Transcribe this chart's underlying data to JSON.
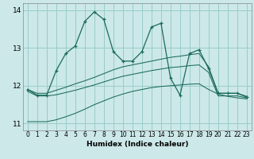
{
  "xlabel": "Humidex (Indice chaleur)",
  "bg_color": "#cce8e8",
  "grid_color": "#99cccc",
  "line_color": "#1a6b5a",
  "xlim": [
    -0.5,
    23.5
  ],
  "ylim": [
    10.82,
    14.18
  ],
  "yticks": [
    11,
    12,
    13,
    14
  ],
  "xticks": [
    0,
    1,
    2,
    3,
    4,
    5,
    6,
    7,
    8,
    9,
    10,
    11,
    12,
    13,
    14,
    15,
    16,
    17,
    18,
    19,
    20,
    21,
    22,
    23
  ],
  "main_y": [
    11.9,
    11.75,
    11.75,
    12.4,
    12.85,
    13.05,
    13.7,
    13.95,
    13.75,
    12.9,
    12.65,
    12.65,
    12.9,
    13.55,
    13.65,
    12.2,
    11.75,
    12.85,
    12.95,
    12.45,
    11.8,
    11.8,
    11.8,
    11.7
  ],
  "upper_y": [
    11.9,
    11.8,
    11.8,
    11.88,
    11.96,
    12.05,
    12.13,
    12.22,
    12.32,
    12.42,
    12.5,
    12.55,
    12.6,
    12.65,
    12.7,
    12.75,
    12.78,
    12.82,
    12.85,
    12.5,
    11.8,
    11.8,
    11.8,
    11.72
  ],
  "middle_y": [
    11.85,
    11.73,
    11.73,
    11.76,
    11.82,
    11.88,
    11.95,
    12.02,
    12.1,
    12.18,
    12.25,
    12.3,
    12.35,
    12.4,
    12.44,
    12.48,
    12.5,
    12.53,
    12.55,
    12.35,
    11.73,
    11.73,
    11.73,
    11.68
  ],
  "lower_y": [
    11.05,
    11.05,
    11.05,
    11.1,
    11.18,
    11.27,
    11.38,
    11.5,
    11.6,
    11.7,
    11.78,
    11.85,
    11.9,
    11.95,
    11.98,
    12.0,
    12.02,
    12.04,
    12.05,
    11.9,
    11.78,
    11.72,
    11.68,
    11.65
  ]
}
